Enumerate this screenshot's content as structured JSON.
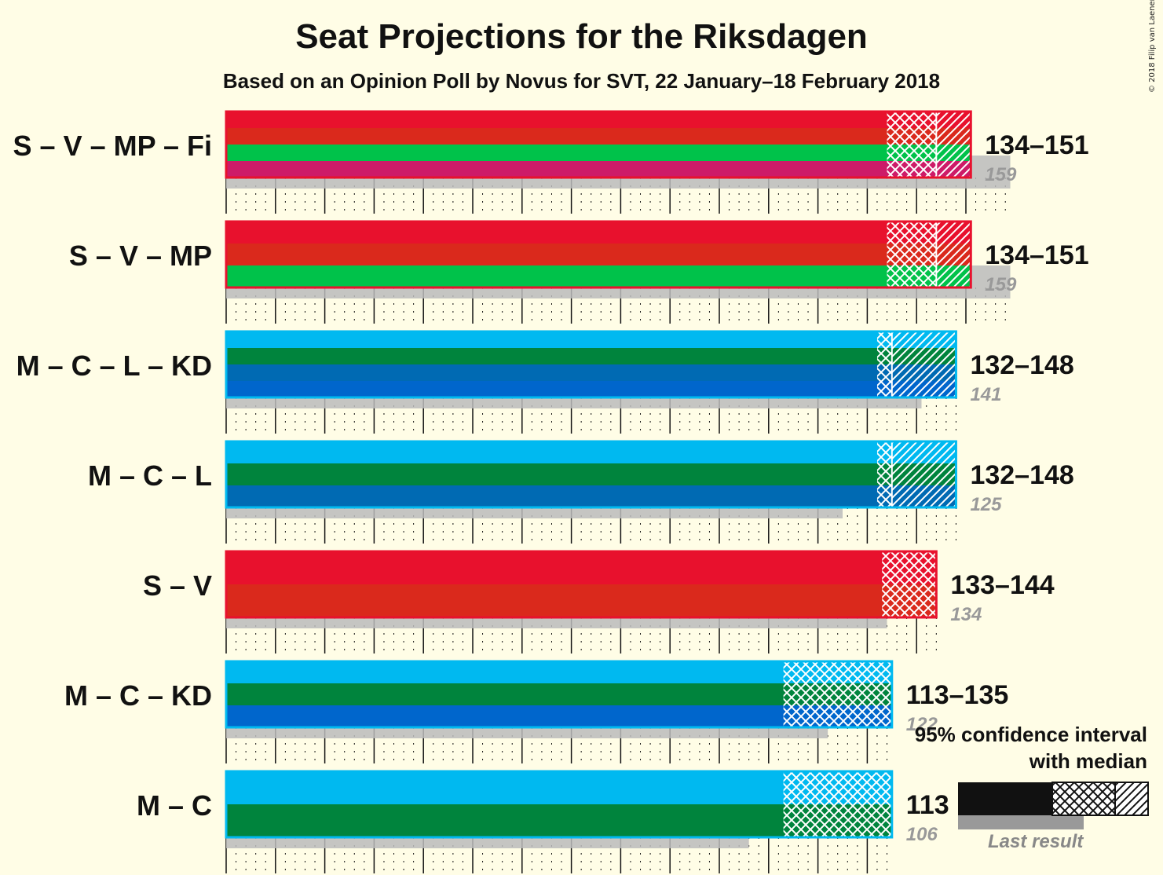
{
  "title": "Seat Projections for the Riksdagen",
  "subtitle": "Based on an Opinion Poll by Novus for SVT, 22 January–18 February 2018",
  "copyright": "© 2018 Filip van Laenen",
  "legend": {
    "title_line1": "95% confidence interval",
    "title_line2": "with median",
    "last_result": "Last result"
  },
  "colors": {
    "background": "#fffde6",
    "S": "#e8112d",
    "V": "#da291c",
    "MP": "#00c24a",
    "Fi": "#cd1b68",
    "M": "#00b9f0",
    "C": "#00843d",
    "L": "#006ab3",
    "KD": "#0066cc",
    "last_result": "#bbbbbb"
  },
  "chart_data": {
    "type": "bar",
    "x_axis": {
      "min": 0,
      "max": 175,
      "grid_step": 10,
      "grid": true
    },
    "categories": [
      "S – V – MP – Fi",
      "S – V – MP",
      "M – C – L – KD",
      "M – C – L",
      "S – V",
      "M – C – KD",
      "M – C"
    ],
    "coalitions": [
      {
        "label": "S – V – MP – Fi",
        "parties": [
          "S",
          "V",
          "MP",
          "Fi"
        ],
        "ci_low": 134,
        "ci_high": 151,
        "median": 144,
        "range_text": "134–151",
        "last_result": 159,
        "last_text": "159"
      },
      {
        "label": "S – V – MP",
        "parties": [
          "S",
          "V",
          "MP"
        ],
        "ci_low": 134,
        "ci_high": 151,
        "median": 144,
        "range_text": "134–151",
        "last_result": 159,
        "last_text": "159"
      },
      {
        "label": "M – C – L – KD",
        "parties": [
          "M",
          "C",
          "L",
          "KD"
        ],
        "ci_low": 132,
        "ci_high": 148,
        "median": 135,
        "range_text": "132–148",
        "last_result": 141,
        "last_text": "141"
      },
      {
        "label": "M – C – L",
        "parties": [
          "M",
          "C",
          "L"
        ],
        "ci_low": 132,
        "ci_high": 148,
        "median": 135,
        "range_text": "132–148",
        "last_result": 125,
        "last_text": "125"
      },
      {
        "label": "S – V",
        "parties": [
          "S",
          "V"
        ],
        "ci_low": 133,
        "ci_high": 144,
        "median": 144,
        "range_text": "133–144",
        "last_result": 134,
        "last_text": "134"
      },
      {
        "label": "M – C – KD",
        "parties": [
          "M",
          "C",
          "KD"
        ],
        "ci_low": 113,
        "ci_high": 135,
        "median": 135,
        "range_text": "113–135",
        "last_result": 122,
        "last_text": "122"
      },
      {
        "label": "M – C",
        "parties": [
          "M",
          "C"
        ],
        "ci_low": 113,
        "ci_high": 135,
        "median": 135,
        "range_text": "113",
        "last_result": 106,
        "last_text": "106"
      }
    ]
  }
}
